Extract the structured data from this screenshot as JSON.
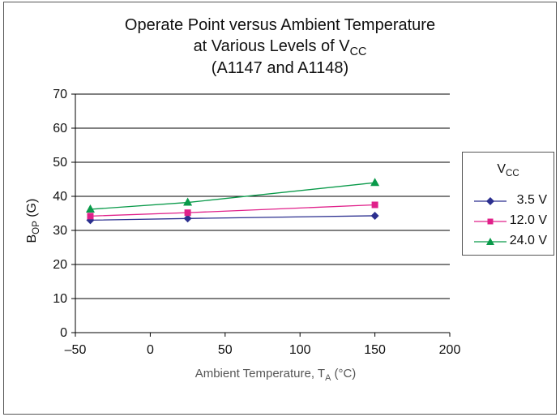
{
  "title": {
    "line1": "Operate Point versus Ambient Temperature",
    "line2_main": "at Various Levels of V",
    "line2_sub": "CC",
    "line3": "(A1147 and A1148)"
  },
  "axes": {
    "xlabel_main": "Ambient Temperature, T",
    "xlabel_sub": "A",
    "xlabel_unit": " (°C)",
    "ylabel_main": "B",
    "ylabel_sub": "OP",
    "ylabel_unit": " (G)"
  },
  "legend": {
    "title_main": "V",
    "title_sub": "CC"
  },
  "colors": {
    "series_3_5": "#2b2f8f",
    "series_12": "#e0208a",
    "series_24": "#0a9a4a",
    "grid": "#000000"
  },
  "chart_data": {
    "type": "line",
    "xlim": [
      -50,
      200
    ],
    "ylim": [
      0,
      70
    ],
    "xticks": [
      -50,
      0,
      50,
      100,
      150,
      200
    ],
    "yticks": [
      0,
      10,
      20,
      30,
      40,
      50,
      60,
      70
    ],
    "xtick_labels": [
      "–50",
      "0",
      "50",
      "100",
      "150",
      "200"
    ],
    "grid": "horizontal",
    "legend_position": "right",
    "series": [
      {
        "name": "3.5 V",
        "marker": "diamond",
        "x": [
          -40,
          25,
          150
        ],
        "y": [
          33.0,
          33.5,
          34.3
        ]
      },
      {
        "name": "12.0 V",
        "marker": "square",
        "x": [
          -40,
          25,
          150
        ],
        "y": [
          34.2,
          35.2,
          37.5
        ]
      },
      {
        "name": "24.0 V",
        "marker": "triangle",
        "x": [
          -40,
          25,
          150
        ],
        "y": [
          36.2,
          38.2,
          44.0
        ]
      }
    ]
  }
}
